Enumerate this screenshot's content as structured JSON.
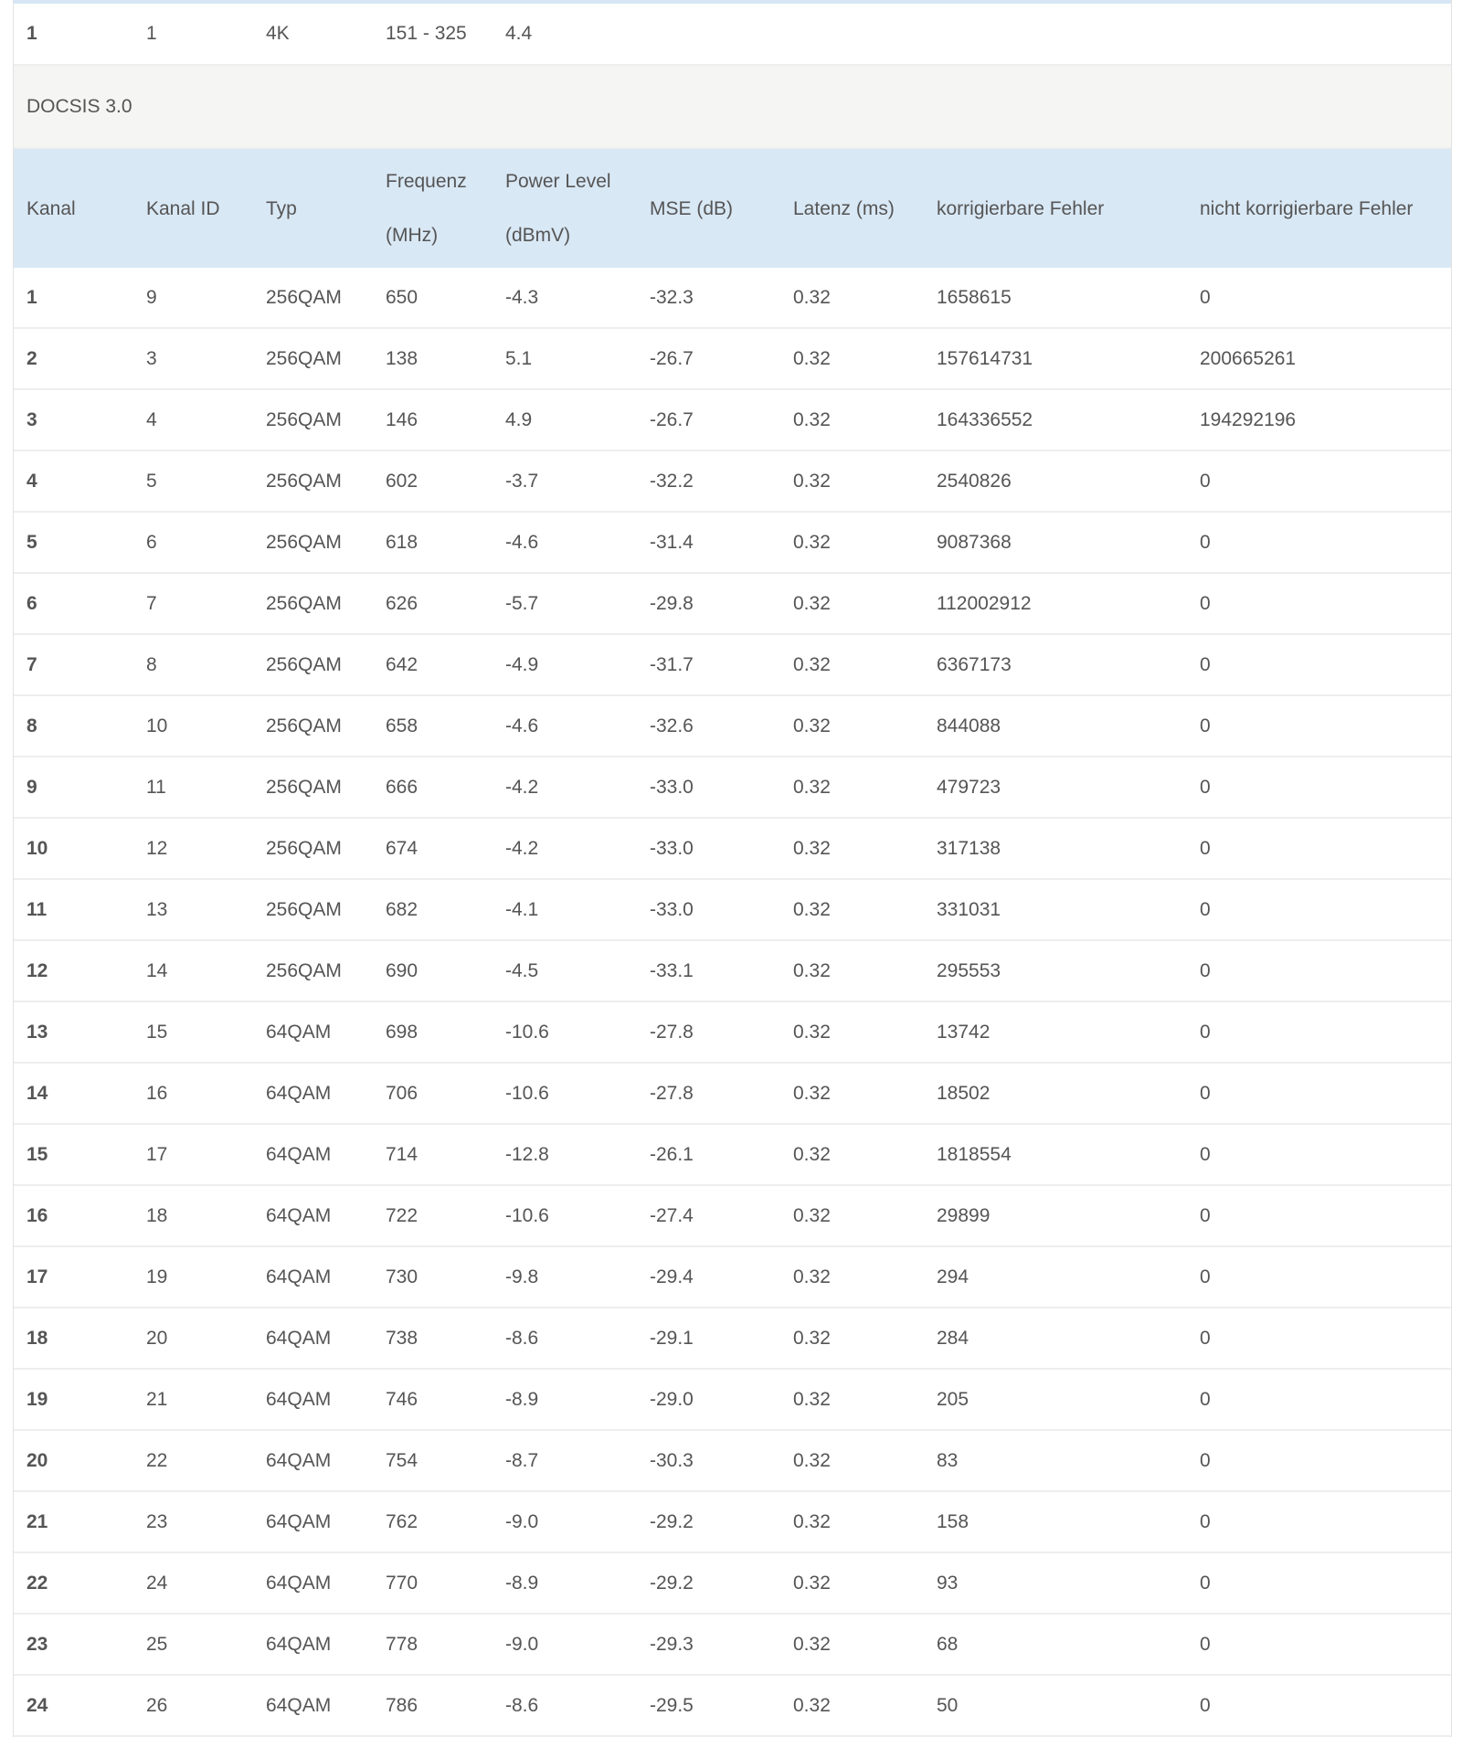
{
  "previous_row": [
    "1",
    "1",
    "4K",
    "151 - 325",
    "4.4"
  ],
  "section_title": "DOCSIS 3.0",
  "columns": {
    "kanal": "Kanal",
    "kanal_id": "Kanal ID",
    "typ": "Typ",
    "frequenz_1": "Frequenz",
    "frequenz_2": "(MHz)",
    "power_1": "Power Level",
    "power_2": "(dBmV)",
    "mse": "MSE (dB)",
    "latenz": "Latenz (ms)",
    "korr": "korrigierbare Fehler",
    "nicht_korr": "nicht korrigierbare Fehler"
  },
  "rows": [
    [
      "1",
      "9",
      "256QAM",
      "650",
      "-4.3",
      "-32.3",
      "0.32",
      "1658615",
      "0"
    ],
    [
      "2",
      "3",
      "256QAM",
      "138",
      "5.1",
      "-26.7",
      "0.32",
      "157614731",
      "200665261"
    ],
    [
      "3",
      "4",
      "256QAM",
      "146",
      "4.9",
      "-26.7",
      "0.32",
      "164336552",
      "194292196"
    ],
    [
      "4",
      "5",
      "256QAM",
      "602",
      "-3.7",
      "-32.2",
      "0.32",
      "2540826",
      "0"
    ],
    [
      "5",
      "6",
      "256QAM",
      "618",
      "-4.6",
      "-31.4",
      "0.32",
      "9087368",
      "0"
    ],
    [
      "6",
      "7",
      "256QAM",
      "626",
      "-5.7",
      "-29.8",
      "0.32",
      "112002912",
      "0"
    ],
    [
      "7",
      "8",
      "256QAM",
      "642",
      "-4.9",
      "-31.7",
      "0.32",
      "6367173",
      "0"
    ],
    [
      "8",
      "10",
      "256QAM",
      "658",
      "-4.6",
      "-32.6",
      "0.32",
      "844088",
      "0"
    ],
    [
      "9",
      "11",
      "256QAM",
      "666",
      "-4.2",
      "-33.0",
      "0.32",
      "479723",
      "0"
    ],
    [
      "10",
      "12",
      "256QAM",
      "674",
      "-4.2",
      "-33.0",
      "0.32",
      "317138",
      "0"
    ],
    [
      "11",
      "13",
      "256QAM",
      "682",
      "-4.1",
      "-33.0",
      "0.32",
      "331031",
      "0"
    ],
    [
      "12",
      "14",
      "256QAM",
      "690",
      "-4.5",
      "-33.1",
      "0.32",
      "295553",
      "0"
    ],
    [
      "13",
      "15",
      "64QAM",
      "698",
      "-10.6",
      "-27.8",
      "0.32",
      "13742",
      "0"
    ],
    [
      "14",
      "16",
      "64QAM",
      "706",
      "-10.6",
      "-27.8",
      "0.32",
      "18502",
      "0"
    ],
    [
      "15",
      "17",
      "64QAM",
      "714",
      "-12.8",
      "-26.1",
      "0.32",
      "1818554",
      "0"
    ],
    [
      "16",
      "18",
      "64QAM",
      "722",
      "-10.6",
      "-27.4",
      "0.32",
      "29899",
      "0"
    ],
    [
      "17",
      "19",
      "64QAM",
      "730",
      "-9.8",
      "-29.4",
      "0.32",
      "294",
      "0"
    ],
    [
      "18",
      "20",
      "64QAM",
      "738",
      "-8.6",
      "-29.1",
      "0.32",
      "284",
      "0"
    ],
    [
      "19",
      "21",
      "64QAM",
      "746",
      "-8.9",
      "-29.0",
      "0.32",
      "205",
      "0"
    ],
    [
      "20",
      "22",
      "64QAM",
      "754",
      "-8.7",
      "-30.3",
      "0.32",
      "83",
      "0"
    ],
    [
      "21",
      "23",
      "64QAM",
      "762",
      "-9.0",
      "-29.2",
      "0.32",
      "158",
      "0"
    ],
    [
      "22",
      "24",
      "64QAM",
      "770",
      "-8.9",
      "-29.2",
      "0.32",
      "93",
      "0"
    ],
    [
      "23",
      "25",
      "64QAM",
      "778",
      "-9.0",
      "-29.3",
      "0.32",
      "68",
      "0"
    ],
    [
      "24",
      "26",
      "64QAM",
      "786",
      "-8.6",
      "-29.5",
      "0.32",
      "50",
      "0"
    ]
  ]
}
